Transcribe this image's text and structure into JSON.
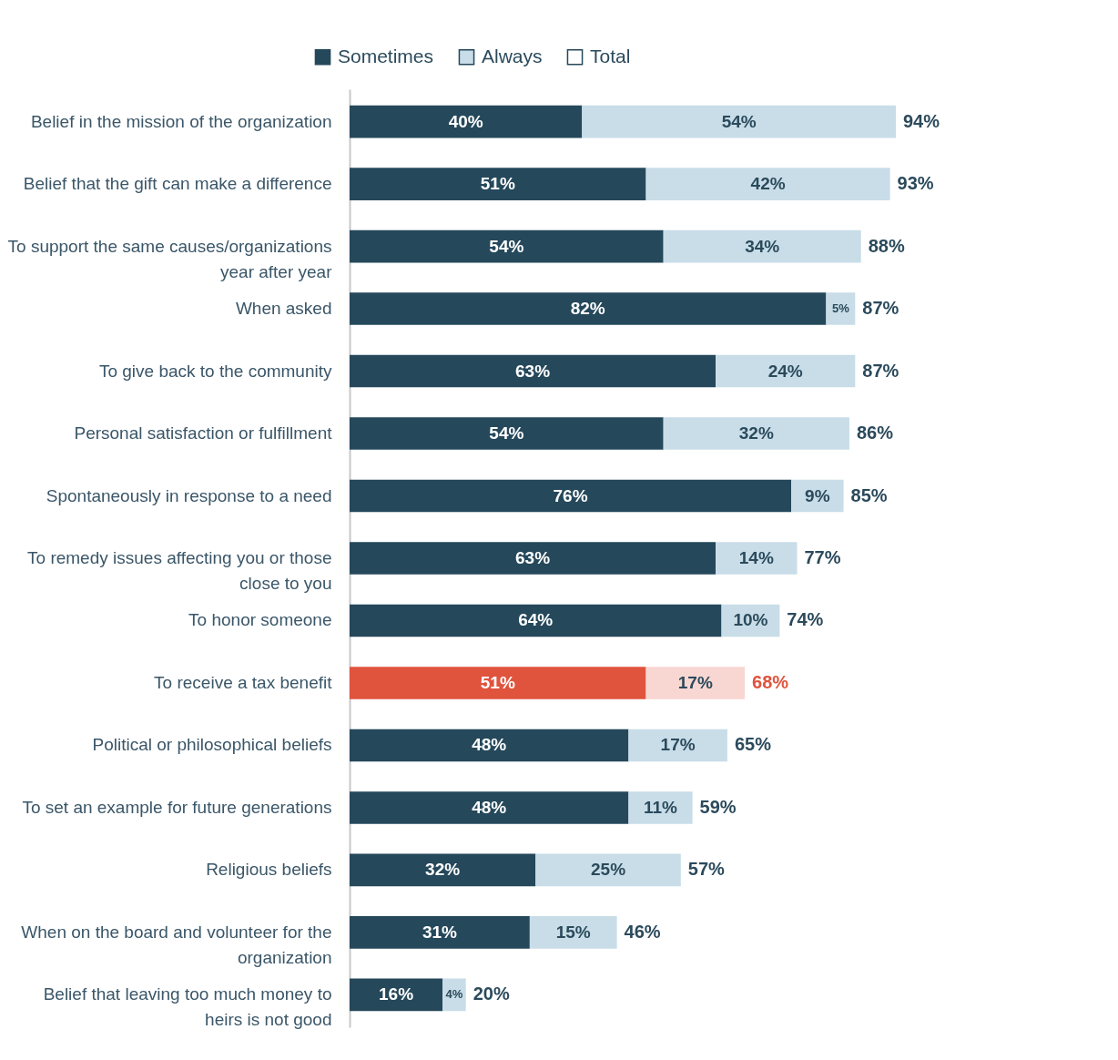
{
  "chart_data": {
    "type": "bar",
    "orientation": "horizontal",
    "stacked": true,
    "legend": "top",
    "tick_labels": "y",
    "grid": false,
    "categories": [
      "Belief in the mission of the organization",
      "Belief that the gift can make a difference",
      "To support the same causes/organizations year after year",
      "When asked",
      "To give back to the community",
      "Personal satisfaction or fulfillment",
      "Spontaneously in response to a need",
      "To remedy issues affecting you or those close to you",
      "To honor someone",
      "To receive a tax benefit",
      "Political or philosophical beliefs",
      "To set an example for future generations",
      "Religious beliefs",
      "When on the board and volunteer for the organization",
      "Belief that leaving too much money to heirs is not good"
    ],
    "series": [
      {
        "name": "Sometimes",
        "color": "#25485b",
        "colors": [
          "#25485b",
          "#25485b",
          "#25485b",
          "#25485b",
          "#25485b",
          "#25485b",
          "#25485b",
          "#25485b",
          "#25485b",
          "#e0533d",
          "#25485b",
          "#25485b",
          "#25485b",
          "#25485b",
          "#25485b"
        ],
        "values": [
          40,
          51,
          54,
          82,
          63,
          54,
          76,
          63,
          64,
          51,
          48,
          48,
          32,
          31,
          16
        ],
        "value_labels": [
          "40%",
          "51%",
          "54%",
          "82%",
          "63%",
          "54%",
          "76%",
          "63%",
          "64%",
          "51%",
          "48%",
          "48%",
          "32%",
          "31%",
          "16%"
        ]
      },
      {
        "name": "Always",
        "color": "#c8dde8",
        "colors": [
          "#c8dde8",
          "#c8dde8",
          "#c8dde8",
          "#c8dde8",
          "#c8dde8",
          "#c8dde8",
          "#c8dde8",
          "#c8dde8",
          "#c8dde8",
          "#f8d6d1",
          "#c8dde8",
          "#c8dde8",
          "#c8dde8",
          "#c8dde8",
          "#c8dde8"
        ],
        "values": [
          54,
          42,
          34,
          5,
          24,
          32,
          9,
          14,
          10,
          17,
          17,
          11,
          25,
          15,
          4
        ],
        "value_labels": [
          "54%",
          "42%",
          "34%",
          "5%",
          "24%",
          "32%",
          "9%",
          "14%",
          "10%",
          "17%",
          "17%",
          "11%",
          "25%",
          "15%",
          "4%"
        ]
      },
      {
        "name": "Total",
        "color": "#ffffff",
        "values": [
          null,
          null,
          null,
          null,
          null,
          null,
          null,
          null,
          null,
          null,
          null,
          null,
          null,
          null,
          null
        ]
      }
    ],
    "totals": [
      "94%",
      "93%",
      "88%",
      "87%",
      "87%",
      "86%",
      "85%",
      "77%",
      "74%",
      "68%",
      "65%",
      "59%",
      "57%",
      "46%",
      "20%"
    ]
  }
}
